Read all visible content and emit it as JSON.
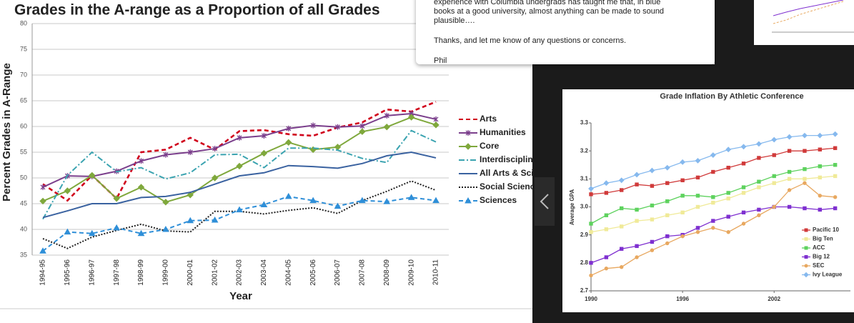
{
  "chart_data": [
    {
      "type": "line",
      "title": "Grades in the A-range as a Proportion of all Grades",
      "x_label": "Year",
      "y_label": "Percent Grades in A-Range",
      "categories": [
        "1994-95",
        "1995-96",
        "1996-97",
        "1997-98",
        "1998-99",
        "1999-00",
        "2000-01",
        "2001-02",
        "2002-03",
        "2003-04",
        "2004-05",
        "2005-06",
        "2006-07",
        "2007-08",
        "2008-09",
        "2009-10",
        "2010-11"
      ],
      "ylim": [
        35,
        80
      ],
      "yticks": [
        35,
        40,
        45,
        50,
        55,
        60,
        65,
        70,
        75,
        80
      ],
      "grid": true,
      "series": [
        {
          "name": "Arts",
          "color": "#d0021b",
          "dash": "dashed",
          "marker": "none",
          "values": [
            48.8,
            45.6,
            50.5,
            46,
            55,
            55.5,
            57.8,
            55.5,
            59.1,
            59.3,
            58.5,
            58.2,
            59.8,
            60.8,
            63.3,
            62.9,
            64.8
          ]
        },
        {
          "name": "Humanities",
          "color": "#7b3f8c",
          "dash": "solid",
          "marker": "star",
          "values": [
            48.2,
            50.4,
            50.3,
            51.3,
            53.3,
            54.5,
            55,
            55.7,
            57.8,
            58.2,
            59.6,
            60.2,
            59.9,
            60.1,
            62.1,
            62.5,
            61.4
          ]
        },
        {
          "name": "Core",
          "color": "#7fa83c",
          "dash": "solid",
          "marker": "diamond",
          "values": [
            45.5,
            47.5,
            50.5,
            46,
            48.2,
            45.3,
            46.7,
            50,
            52.3,
            54.8,
            56.9,
            55.5,
            56,
            59,
            59.9,
            61.8,
            60.3
          ]
        },
        {
          "name": "Interdisciplinary",
          "color": "#3aa3b0",
          "dash": "dashdot",
          "marker": "none",
          "values": [
            42,
            50.5,
            55,
            51.2,
            52,
            49.8,
            51,
            54.5,
            54.6,
            52,
            55.8,
            55.8,
            55.4,
            53.8,
            53,
            59.2,
            57
          ]
        },
        {
          "name": "All Arts & Sciences",
          "color": "#3a62a0",
          "dash": "solid",
          "marker": "none",
          "values": [
            42.3,
            43.6,
            45,
            45,
            46.2,
            46.4,
            47.2,
            48.8,
            50.4,
            51,
            52.4,
            52.2,
            51.9,
            52.8,
            54.3,
            55,
            53.9
          ]
        },
        {
          "name": "Social Sciences",
          "color": "#222222",
          "dash": "dotted",
          "marker": "none",
          "values": [
            38.2,
            36.3,
            38.5,
            39.8,
            41,
            39.7,
            39.5,
            43.5,
            43.5,
            43,
            43.7,
            44.2,
            43.1,
            45.6,
            47.4,
            49.4,
            47.6
          ]
        },
        {
          "name": "Sciences",
          "color": "#2f8fd8",
          "dash": "dashed",
          "marker": "triangle",
          "values": [
            35.8,
            39.5,
            39.2,
            40.3,
            39.2,
            40,
            41.7,
            41.8,
            43.8,
            44.8,
            46.4,
            45.6,
            44.5,
            45.6,
            45.4,
            46.2,
            45.6
          ]
        }
      ]
    },
    {
      "type": "line",
      "title": "Grade Inflation By Athletic Conference",
      "y_label": "Average GPA",
      "x": [
        1990,
        1991,
        1992,
        1993,
        1994,
        1995,
        1996,
        1997,
        1998,
        1999,
        2000,
        2001,
        2002,
        2003,
        2004,
        2005,
        2006
      ],
      "xlim": [
        1990,
        2007
      ],
      "xticks": [
        1990,
        1996,
        2002
      ],
      "ylim": [
        2.7,
        3.3
      ],
      "yticks": [
        2.7,
        2.8,
        2.9,
        {
          "value": 3,
          "label": "3.0"
        },
        3.1,
        3.2,
        3.3
      ],
      "legend": "lower right",
      "series": [
        {
          "name": "Pacific 10",
          "color": "#d03a3a",
          "marker": "square",
          "values": [
            3.045,
            3.05,
            3.06,
            3.08,
            3.075,
            3.085,
            3.095,
            3.105,
            3.125,
            3.14,
            3.155,
            3.175,
            3.185,
            3.2,
            3.2,
            3.205,
            3.21
          ]
        },
        {
          "name": "Big Ten",
          "color": "#f0ea98",
          "marker": "square",
          "values": [
            2.91,
            2.92,
            2.93,
            2.95,
            2.955,
            2.97,
            2.98,
            3.0,
            3.015,
            3.03,
            3.05,
            3.07,
            3.085,
            3.1,
            3.1,
            3.105,
            3.11
          ]
        },
        {
          "name": "ACC",
          "color": "#5ed25e",
          "marker": "square",
          "values": [
            2.94,
            2.97,
            2.995,
            2.99,
            3.005,
            3.02,
            3.04,
            3.04,
            3.035,
            3.05,
            3.07,
            3.09,
            3.11,
            3.125,
            3.135,
            3.145,
            3.15
          ]
        },
        {
          "name": "Big 12",
          "color": "#7f30d0",
          "marker": "square",
          "values": [
            2.8,
            2.82,
            2.85,
            2.86,
            2.875,
            2.895,
            2.9,
            2.925,
            2.95,
            2.965,
            2.98,
            2.99,
            3.0,
            3.0,
            2.995,
            2.99,
            2.995
          ]
        },
        {
          "name": "SEC",
          "color": "#e8a860",
          "marker": "circle",
          "values": [
            2.755,
            2.78,
            2.785,
            2.82,
            2.845,
            2.87,
            2.895,
            2.91,
            2.925,
            2.91,
            2.94,
            2.97,
            3.0,
            3.06,
            3.085,
            3.04,
            3.035
          ]
        },
        {
          "name": "Ivy League",
          "color": "#86b9ee",
          "marker": "diamond",
          "values": [
            3.065,
            3.085,
            3.095,
            3.115,
            3.13,
            3.14,
            3.16,
            3.165,
            3.185,
            3.205,
            3.215,
            3.225,
            3.24,
            3.25,
            3.255,
            3.255,
            3.26
          ]
        }
      ]
    }
  ],
  "popup": {
    "lines": [
      "experience with Columbia undergrads has taught me that, in blue",
      "books at a good university, almost anything can be made to sound",
      "plausible….",
      "Thanks, and let me know of any questions or concerns.",
      "Phil"
    ]
  }
}
